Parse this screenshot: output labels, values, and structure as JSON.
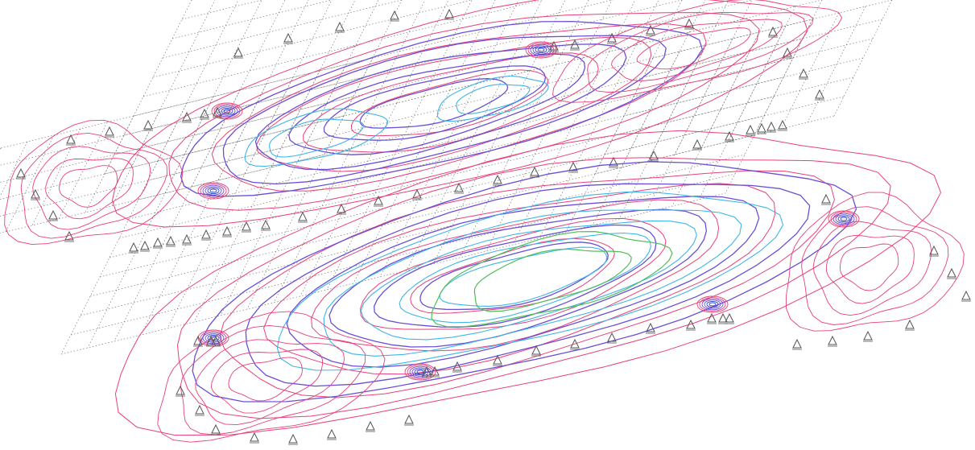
{
  "view": {
    "background": "#ffffff",
    "mesh_color": "#7a7a7a",
    "support_color": "#555555",
    "contour_palette": {
      "outer": "#e8407a",
      "mid": "#6a4fd6",
      "inner": "#3fb6e8",
      "core": "#4fbf5a",
      "hotspot": "#3344cc"
    },
    "support_icon": "triangle-support-icon",
    "projection": "isometric"
  }
}
